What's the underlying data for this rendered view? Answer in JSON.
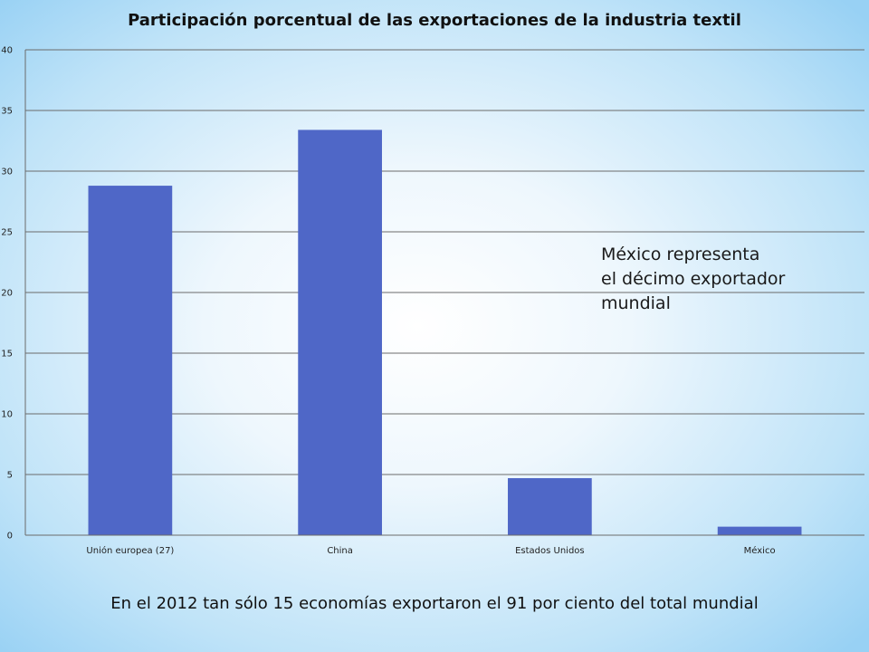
{
  "chart_data": {
    "type": "bar",
    "title": "Participación porcentual de las exportaciones de la industria textil",
    "categories": [
      "Unión europea (27)",
      "China",
      "Estados Unidos",
      "México"
    ],
    "values": [
      28.8,
      33.4,
      4.7,
      0.7
    ],
    "ylim": [
      0,
      40
    ],
    "yticks": [
      0,
      5,
      10,
      15,
      20,
      25,
      30,
      35,
      40
    ],
    "xlabel": "",
    "ylabel": "",
    "grid": true,
    "legend": "none",
    "bar_color": "#4f67c7",
    "grid_color": "#6b6b6b"
  },
  "annotation": {
    "lines": [
      "México representa",
      "el décimo exportador",
      "mundial"
    ]
  },
  "footer": "En el 2012 tan sólo 15 economías exportaron el 91 por ciento del total mundial"
}
